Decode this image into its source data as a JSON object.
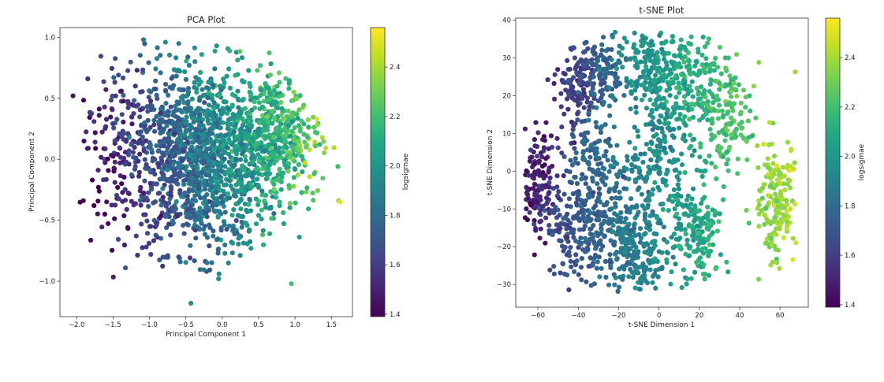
{
  "chart_data": [
    {
      "type": "scatter",
      "title": "PCA Plot",
      "xlabel": "Principal Component 1",
      "ylabel": "Principal Component 2",
      "xlim": [
        -2.23,
        1.79
      ],
      "ylim": [
        -1.29,
        1.08
      ],
      "xticks": [
        -2.0,
        -1.5,
        -1.0,
        -0.5,
        0.0,
        0.5,
        1.0,
        1.5
      ],
      "xtick_labels": [
        "−2.0",
        "−1.5",
        "−1.0",
        "−0.5",
        "0.0",
        "0.5",
        "1.0",
        "1.5"
      ],
      "yticks": [
        1.0,
        0.5,
        0.0,
        -0.5,
        -1.0
      ],
      "ytick_labels": [
        "1.0",
        "0.5",
        "0.0",
        "−0.5",
        "−1.0"
      ],
      "grid": false,
      "colormap": "viridis",
      "color_variable": "logsigmae",
      "colorbar": {
        "label": "logsigmae",
        "range": [
          1.39,
          2.56
        ],
        "ticks": [
          1.4,
          1.6,
          1.8,
          2.0,
          2.2,
          2.4
        ],
        "tick_labels": [
          "1.4",
          "1.6",
          "1.8",
          "2.0",
          "2.2",
          "2.4"
        ]
      },
      "approx_point_count": 1800,
      "trend": "color increases with Principal Component 1 (dark purple at PC1 ≈ -1.8, yellow at PC1 ≈ 1.6)",
      "notable_points": [
        {
          "x": -2.05,
          "y": 0.52,
          "c": 1.45
        },
        {
          "x": -1.33,
          "y": -0.89,
          "c": 1.7
        },
        {
          "x": -0.43,
          "y": -1.18,
          "c": 1.95
        },
        {
          "x": 0.95,
          "y": -1.02,
          "c": 2.2
        },
        {
          "x": 1.3,
          "y": 0.33,
          "c": 2.5
        },
        {
          "x": -1.08,
          "y": 0.98,
          "c": 1.85
        },
        {
          "x": -0.78,
          "y": 0.96,
          "c": 1.95
        },
        {
          "x": -0.05,
          "y": -0.98,
          "c": 1.95
        },
        {
          "x": 1.62,
          "y": -0.35,
          "c": 2.52
        }
      ],
      "clusters": [
        {
          "cx": -0.25,
          "cy": 0.0,
          "sx": 0.55,
          "sy": 0.38,
          "n": 1400
        },
        {
          "cx": 0.75,
          "cy": 0.2,
          "sx": 0.3,
          "sy": 0.25,
          "n": 350
        },
        {
          "cx": -1.3,
          "cy": 0.2,
          "sx": 0.35,
          "sy": 0.35,
          "n": 150
        }
      ]
    },
    {
      "type": "scatter",
      "title": "t-SNE Plot",
      "xlabel": "t-SNE Dimension 1",
      "ylabel": "t-SNE Dimension 2",
      "xlim": [
        -71,
        74
      ],
      "ylim": [
        -36,
        40.5
      ],
      "xticks": [
        -60,
        -40,
        -20,
        0,
        20,
        40,
        60
      ],
      "xtick_labels": [
        "−60",
        "−40",
        "−20",
        "0",
        "20",
        "40",
        "60"
      ],
      "yticks": [
        40,
        30,
        20,
        10,
        0,
        -10,
        -20,
        -30
      ],
      "ytick_labels": [
        "40",
        "30",
        "20",
        "10",
        "0",
        "−10",
        "−20",
        "−30"
      ],
      "grid": false,
      "colormap": "viridis",
      "color_variable": "logsigmae",
      "colorbar": {
        "label": "logsigmae",
        "range": [
          1.39,
          2.56
        ],
        "ticks": [
          1.4,
          1.6,
          1.8,
          2.0,
          2.2,
          2.4
        ],
        "tick_labels": [
          "1.4",
          "1.6",
          "1.8",
          "2.0",
          "2.2",
          "2.4"
        ]
      },
      "approx_point_count": 1800,
      "trend": "purple at far left (x ≈ -60), teal in the center, green along the upper-right arc, yellow-green cluster at x ≈ 55–65, y ≈ -20–0",
      "clusters": [
        {
          "name": "left-purple",
          "cx": -60,
          "cy": -3,
          "sx": 5,
          "sy": 7,
          "n": 140,
          "c": 1.5
        },
        {
          "name": "upper-left-purple",
          "cx": -40,
          "cy": 22,
          "sx": 5,
          "sy": 6,
          "n": 110,
          "c": 1.6
        },
        {
          "name": "upper-left-blue",
          "cx": -28,
          "cy": 26,
          "sx": 6,
          "sy": 5,
          "n": 120,
          "c": 1.75
        },
        {
          "name": "lower-left-blue",
          "cx": -38,
          "cy": -15,
          "sx": 9,
          "sy": 7,
          "n": 230,
          "c": 1.72
        },
        {
          "name": "mid-left",
          "cx": -30,
          "cy": 2,
          "sx": 7,
          "sy": 6,
          "n": 120,
          "c": 1.78
        },
        {
          "name": "bottom-center",
          "cx": -12,
          "cy": -22,
          "sx": 9,
          "sy": 6,
          "n": 220,
          "c": 1.88
        },
        {
          "name": "center",
          "cx": -3,
          "cy": 5,
          "sx": 12,
          "sy": 10,
          "n": 260,
          "c": 1.95
        },
        {
          "name": "top-center",
          "cx": -5,
          "cy": 28,
          "sx": 8,
          "sy": 5,
          "n": 150,
          "c": 2.0
        },
        {
          "name": "top-right",
          "cx": 15,
          "cy": 25,
          "sx": 9,
          "sy": 6,
          "n": 170,
          "c": 2.12
        },
        {
          "name": "lower-right-mid",
          "cx": 18,
          "cy": -17,
          "sx": 7,
          "sy": 7,
          "n": 160,
          "c": 2.08
        },
        {
          "name": "right-arc",
          "cx": 33,
          "cy": 12,
          "sx": 7,
          "sy": 8,
          "n": 150,
          "c": 2.22
        },
        {
          "name": "far-right",
          "cx": 58,
          "cy": -8,
          "sx": 5,
          "sy": 8,
          "n": 170,
          "c": 2.38
        }
      ]
    }
  ]
}
